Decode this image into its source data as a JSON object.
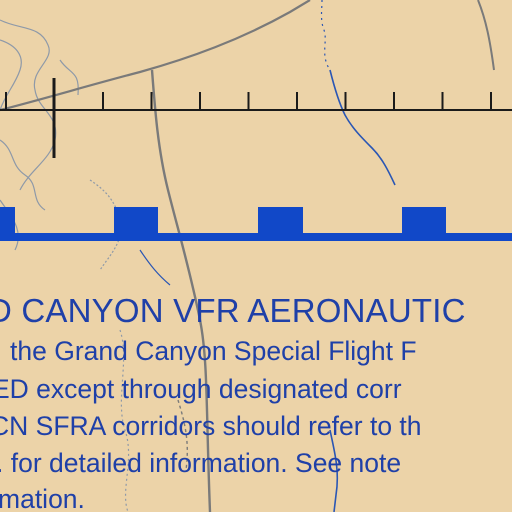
{
  "notice": {
    "title": "D CANYON VFR AERONAUTIC",
    "lines": [
      "the Grand Canyon Special Flight F",
      "ED except through designated corr",
      "CN SFRA corridors should refer to th",
      ". for detailed information. See note",
      "mation."
    ]
  },
  "colors": {
    "background": "#ecd3a8",
    "text": "#1f40a8",
    "boundary_bar": "#1148c8",
    "tick_line": "#1a1a1a",
    "road": "#7a7a7a",
    "river": "#2a56b4",
    "terrain": "#6f86a8"
  }
}
